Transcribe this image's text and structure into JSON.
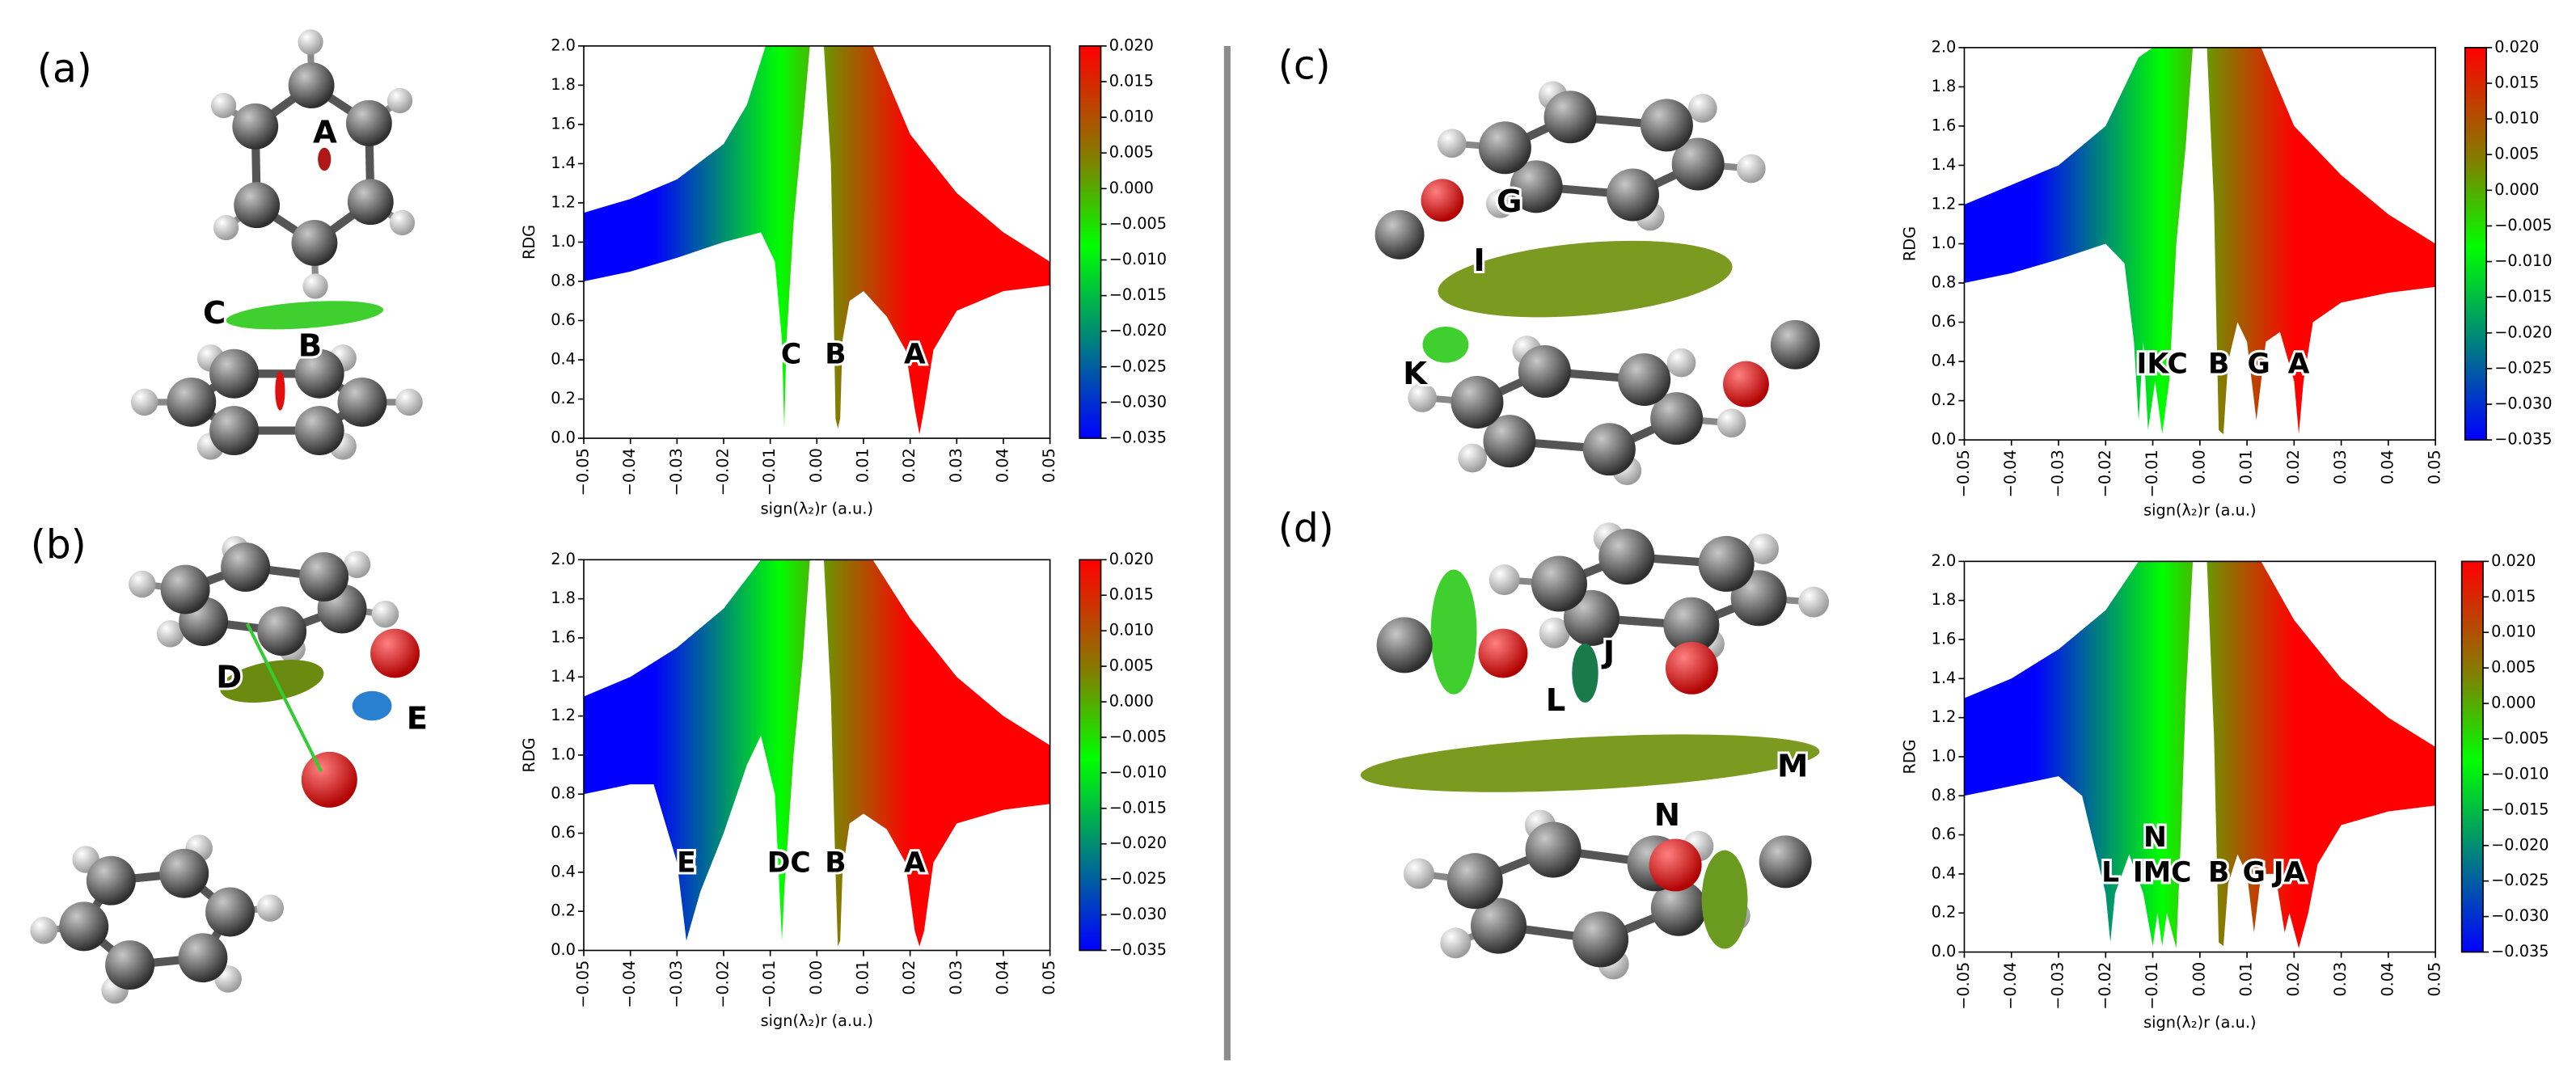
{
  "chart_data": [
    {
      "type": "scatter",
      "panel": "(a)",
      "structure_labels": [
        "A",
        "C",
        "B"
      ],
      "xlabel": "sign(λ₂)r (a.u.)",
      "ylabel": "RDG",
      "xlim": [
        -0.05,
        0.05
      ],
      "ylim": [
        0,
        2
      ],
      "clim": [
        -0.035,
        0.02
      ],
      "xticks": [
        {
          "value": -0.05,
          "label": "−0.05"
        },
        {
          "value": -0.04,
          "label": "−0.04"
        },
        {
          "value": -0.03,
          "label": "−0.03"
        },
        {
          "value": -0.02,
          "label": "−0.02"
        },
        {
          "value": -0.01,
          "label": "−0.01"
        },
        {
          "value": 0,
          "label": "0.00"
        },
        0.01,
        0.02,
        0.03,
        0.04,
        0.05
      ],
      "yticks": [
        {
          "value": 0,
          "label": "0.0"
        },
        0.2,
        0.4,
        0.6,
        0.8,
        {
          "value": 1,
          "label": "1.0"
        },
        1.2,
        1.4,
        1.6,
        1.8,
        {
          "value": 2,
          "label": "2.0"
        }
      ],
      "cticks": [
        {
          "value": 0.02,
          "label": "0.020"
        },
        {
          "value": 0.015,
          "label": "0.015"
        },
        {
          "value": 0.01,
          "label": "0.010"
        },
        {
          "value": 0.005,
          "label": "0.005"
        },
        {
          "value": 0,
          "label": "0.000"
        },
        {
          "value": -0.005,
          "label": "−0.005"
        },
        {
          "value": -0.01,
          "label": "−0.010"
        },
        {
          "value": -0.015,
          "label": "−0.015"
        },
        {
          "value": -0.02,
          "label": "−0.020"
        },
        {
          "value": -0.025,
          "label": "−0.025"
        },
        {
          "value": -0.03,
          "label": "−0.030"
        },
        {
          "value": -0.035,
          "label": "−0.035"
        }
      ],
      "colormap": [
        {
          "value": -0.035,
          "color": "#0000ff"
        },
        {
          "value": -0.008,
          "color": "#00ff00"
        },
        {
          "value": 0.004,
          "color": "#808000"
        },
        {
          "value": 0.02,
          "color": "#ff0000"
        }
      ],
      "envelope": {
        "upper_x": [
          -0.05,
          -0.04,
          -0.03,
          -0.02,
          -0.015,
          -0.011,
          -0.009,
          0.009,
          0.012,
          0.02,
          0.03,
          0.04,
          0.05
        ],
        "upper_y": [
          1.15,
          1.22,
          1.32,
          1.5,
          1.7,
          2.0,
          2.0,
          2.0,
          2.0,
          1.55,
          1.25,
          1.05,
          0.9
        ],
        "lower_x": [
          -0.05,
          -0.04,
          -0.03,
          -0.02,
          -0.012,
          -0.009,
          -0.0075,
          -0.007,
          -0.0065,
          -0.005,
          -0.003,
          -0.0015,
          0.0015,
          0.003,
          0.0035,
          0.004,
          0.0045,
          0.005,
          0.0055,
          0.007,
          0.01,
          0.015,
          0.019,
          0.021,
          0.022,
          0.023,
          0.025,
          0.03,
          0.04,
          0.05
        ],
        "lower_y": [
          0.8,
          0.85,
          0.92,
          1.0,
          1.05,
          0.9,
          0.5,
          0.05,
          0.5,
          1.1,
          1.6,
          2.0,
          2.0,
          1.4,
          0.8,
          0.1,
          0.05,
          0.1,
          0.5,
          0.7,
          0.75,
          0.62,
          0.45,
          0.15,
          0.02,
          0.15,
          0.45,
          0.65,
          0.75,
          0.78
        ]
      },
      "annotations": [
        {
          "text": "C",
          "x": -0.0055,
          "y": 0.42
        },
        {
          "text": "B",
          "x": 0.004,
          "y": 0.42
        },
        {
          "text": "A",
          "x": 0.021,
          "y": 0.42
        }
      ]
    },
    {
      "type": "scatter",
      "panel": "(b)",
      "structure_labels": [
        "D",
        "E"
      ],
      "xlabel": "sign(λ₂)r (a.u.)",
      "ylabel": "RDG",
      "xlim": [
        -0.05,
        0.05
      ],
      "ylim": [
        0,
        2
      ],
      "clim": [
        -0.035,
        0.02
      ],
      "xticks": [
        {
          "value": -0.05,
          "label": "−0.05"
        },
        {
          "value": -0.04,
          "label": "−0.04"
        },
        {
          "value": -0.03,
          "label": "−0.03"
        },
        {
          "value": -0.02,
          "label": "−0.02"
        },
        {
          "value": -0.01,
          "label": "−0.01"
        },
        {
          "value": 0,
          "label": "0.00"
        },
        0.01,
        0.02,
        0.03,
        0.04,
        0.05
      ],
      "yticks": [
        {
          "value": 0,
          "label": "0.0"
        },
        0.2,
        0.4,
        0.6,
        0.8,
        {
          "value": 1,
          "label": "1.0"
        },
        1.2,
        1.4,
        1.6,
        1.8,
        {
          "value": 2,
          "label": "2.0"
        }
      ],
      "cticks": [
        {
          "value": 0.02,
          "label": "0.020"
        },
        {
          "value": 0.015,
          "label": "0.015"
        },
        {
          "value": 0.01,
          "label": "0.010"
        },
        {
          "value": 0.005,
          "label": "0.005"
        },
        {
          "value": 0,
          "label": "0.000"
        },
        {
          "value": -0.005,
          "label": "−0.005"
        },
        {
          "value": -0.01,
          "label": "−0.010"
        },
        {
          "value": -0.015,
          "label": "−0.015"
        },
        {
          "value": -0.02,
          "label": "−0.020"
        },
        {
          "value": -0.025,
          "label": "−0.025"
        },
        {
          "value": -0.03,
          "label": "−0.030"
        },
        {
          "value": -0.035,
          "label": "−0.035"
        }
      ],
      "colormap": [
        {
          "value": -0.035,
          "color": "#0000ff"
        },
        {
          "value": -0.008,
          "color": "#00ff00"
        },
        {
          "value": 0.004,
          "color": "#808000"
        },
        {
          "value": 0.02,
          "color": "#ff0000"
        }
      ],
      "envelope": {
        "upper_x": [
          -0.05,
          -0.04,
          -0.03,
          -0.02,
          -0.012,
          -0.009,
          0.009,
          0.012,
          0.02,
          0.03,
          0.04,
          0.05
        ],
        "upper_y": [
          1.3,
          1.4,
          1.55,
          1.75,
          2.0,
          2.0,
          2.0,
          2.0,
          1.7,
          1.4,
          1.2,
          1.05
        ],
        "lower_x": [
          -0.05,
          -0.04,
          -0.035,
          -0.03,
          -0.028,
          -0.025,
          -0.02,
          -0.015,
          -0.012,
          -0.009,
          -0.008,
          -0.0075,
          -0.007,
          -0.005,
          -0.003,
          -0.0015,
          0.0015,
          0.003,
          0.004,
          0.0045,
          0.005,
          0.0055,
          0.007,
          0.01,
          0.015,
          0.019,
          0.021,
          0.022,
          0.023,
          0.025,
          0.03,
          0.04,
          0.05
        ],
        "lower_y": [
          0.8,
          0.85,
          0.85,
          0.45,
          0.05,
          0.3,
          0.6,
          0.95,
          1.1,
          0.8,
          0.3,
          0.05,
          0.3,
          1.0,
          1.5,
          2.0,
          2.0,
          1.3,
          0.4,
          0.02,
          0.05,
          0.4,
          0.65,
          0.7,
          0.62,
          0.45,
          0.1,
          0.02,
          0.1,
          0.45,
          0.65,
          0.72,
          0.75
        ]
      },
      "annotations": [
        {
          "text": "E",
          "x": -0.028,
          "y": 0.44
        },
        {
          "text": "DC",
          "x": -0.006,
          "y": 0.44
        },
        {
          "text": "B",
          "x": 0.004,
          "y": 0.44
        },
        {
          "text": "A",
          "x": 0.021,
          "y": 0.44
        }
      ]
    },
    {
      "type": "scatter",
      "panel": "(c)",
      "structure_labels": [
        "G",
        "I",
        "K"
      ],
      "xlabel": "sign(λ₂)r (a.u.)",
      "ylabel": "RDG",
      "xlim": [
        -0.05,
        0.05
      ],
      "ylim": [
        0,
        2
      ],
      "clim": [
        -0.035,
        0.02
      ],
      "xticks": [
        {
          "value": -0.05,
          "label": "−0.05"
        },
        {
          "value": -0.04,
          "label": "−0.04"
        },
        {
          "value": -0.03,
          "label": "−0.03"
        },
        {
          "value": -0.02,
          "label": "−0.02"
        },
        {
          "value": -0.01,
          "label": "−0.01"
        },
        {
          "value": 0,
          "label": "0.00"
        },
        0.01,
        0.02,
        0.03,
        0.04,
        0.05
      ],
      "yticks": [
        {
          "value": 0,
          "label": "0.0"
        },
        0.2,
        0.4,
        0.6,
        0.8,
        {
          "value": 1,
          "label": "1.0"
        },
        1.2,
        1.4,
        1.6,
        1.8,
        {
          "value": 2,
          "label": "2.0"
        }
      ],
      "cticks": [
        {
          "value": 0.02,
          "label": "0.020"
        },
        {
          "value": 0.015,
          "label": "0.015"
        },
        {
          "value": 0.01,
          "label": "0.010"
        },
        {
          "value": 0.005,
          "label": "0.005"
        },
        {
          "value": 0,
          "label": "0.000"
        },
        {
          "value": -0.005,
          "label": "−0.005"
        },
        {
          "value": -0.01,
          "label": "−0.010"
        },
        {
          "value": -0.015,
          "label": "−0.015"
        },
        {
          "value": -0.02,
          "label": "−0.020"
        },
        {
          "value": -0.025,
          "label": "−0.025"
        },
        {
          "value": -0.03,
          "label": "−0.030"
        },
        {
          "value": -0.035,
          "label": "−0.035"
        }
      ],
      "colormap": [
        {
          "value": -0.035,
          "color": "#0000ff"
        },
        {
          "value": -0.008,
          "color": "#00ff00"
        },
        {
          "value": 0.004,
          "color": "#808000"
        },
        {
          "value": 0.02,
          "color": "#ff0000"
        }
      ],
      "envelope": {
        "upper_x": [
          -0.05,
          -0.04,
          -0.03,
          -0.02,
          -0.013,
          -0.01,
          0.01,
          0.013,
          0.02,
          0.03,
          0.04,
          0.05
        ],
        "upper_y": [
          1.2,
          1.3,
          1.4,
          1.6,
          1.95,
          2.0,
          2.0,
          2.0,
          1.6,
          1.35,
          1.15,
          1.0
        ],
        "lower_x": [
          -0.05,
          -0.04,
          -0.03,
          -0.02,
          -0.016,
          -0.014,
          -0.013,
          -0.012,
          -0.011,
          -0.0095,
          -0.008,
          -0.0065,
          -0.005,
          -0.003,
          -0.0015,
          0.0015,
          0.003,
          0.0035,
          0.004,
          0.005,
          0.006,
          0.008,
          0.01,
          0.012,
          0.014,
          0.017,
          0.02,
          0.021,
          0.022,
          0.024,
          0.03,
          0.04,
          0.05
        ],
        "lower_y": [
          0.8,
          0.85,
          0.92,
          1.0,
          0.9,
          0.5,
          0.1,
          0.5,
          0.05,
          0.3,
          0.03,
          0.3,
          1.0,
          1.5,
          2.0,
          2.0,
          1.2,
          0.6,
          0.05,
          0.03,
          0.4,
          0.6,
          0.5,
          0.1,
          0.5,
          0.55,
          0.3,
          0.03,
          0.3,
          0.6,
          0.7,
          0.75,
          0.78
        ]
      },
      "annotations": [
        {
          "text": "IKC",
          "x": -0.008,
          "y": 0.38
        },
        {
          "text": "B",
          "x": 0.004,
          "y": 0.38
        },
        {
          "text": "G",
          "x": 0.0125,
          "y": 0.38
        },
        {
          "text": "A",
          "x": 0.021,
          "y": 0.38
        }
      ]
    },
    {
      "type": "scatter",
      "panel": "(d)",
      "structure_labels": [
        "J",
        "L",
        "M",
        "N"
      ],
      "xlabel": "sign(λ₂)r (a.u.)",
      "ylabel": "RDG",
      "xlim": [
        -0.05,
        0.05
      ],
      "ylim": [
        0,
        2
      ],
      "clim": [
        -0.035,
        0.02
      ],
      "xticks": [
        {
          "value": -0.05,
          "label": "−0.05"
        },
        {
          "value": -0.04,
          "label": "−0.04"
        },
        {
          "value": -0.03,
          "label": "−0.03"
        },
        {
          "value": -0.02,
          "label": "−0.02"
        },
        {
          "value": -0.01,
          "label": "−0.01"
        },
        {
          "value": 0,
          "label": "0.00"
        },
        0.01,
        0.02,
        0.03,
        0.04,
        0.05
      ],
      "yticks": [
        {
          "value": 0,
          "label": "0.0"
        },
        0.2,
        0.4,
        0.6,
        0.8,
        {
          "value": 1,
          "label": "1.0"
        },
        1.2,
        1.4,
        1.6,
        1.8,
        {
          "value": 2,
          "label": "2.0"
        }
      ],
      "cticks": [
        {
          "value": 0.02,
          "label": "0.020"
        },
        {
          "value": 0.015,
          "label": "0.015"
        },
        {
          "value": 0.01,
          "label": "0.010"
        },
        {
          "value": 0.005,
          "label": "0.005"
        },
        {
          "value": 0,
          "label": "0.000"
        },
        {
          "value": -0.005,
          "label": "−0.005"
        },
        {
          "value": -0.01,
          "label": "−0.010"
        },
        {
          "value": -0.015,
          "label": "−0.015"
        },
        {
          "value": -0.02,
          "label": "−0.020"
        },
        {
          "value": -0.025,
          "label": "−0.025"
        },
        {
          "value": -0.03,
          "label": "−0.030"
        },
        {
          "value": -0.035,
          "label": "−0.035"
        }
      ],
      "colormap": [
        {
          "value": -0.035,
          "color": "#0000ff"
        },
        {
          "value": -0.008,
          "color": "#00ff00"
        },
        {
          "value": 0.004,
          "color": "#808000"
        },
        {
          "value": 0.02,
          "color": "#ff0000"
        }
      ],
      "envelope": {
        "upper_x": [
          -0.05,
          -0.04,
          -0.03,
          -0.02,
          -0.013,
          -0.01,
          0.01,
          0.013,
          0.02,
          0.03,
          0.04,
          0.05
        ],
        "upper_y": [
          1.3,
          1.4,
          1.55,
          1.75,
          2.0,
          2.0,
          2.0,
          2.0,
          1.7,
          1.4,
          1.2,
          1.05
        ],
        "lower_x": [
          -0.05,
          -0.04,
          -0.03,
          -0.025,
          -0.02,
          -0.019,
          -0.018,
          -0.015,
          -0.012,
          -0.01,
          -0.009,
          -0.008,
          -0.007,
          -0.005,
          -0.004,
          -0.003,
          -0.0015,
          0.0015,
          0.003,
          0.004,
          0.005,
          0.006,
          0.008,
          0.01,
          0.0115,
          0.013,
          0.016,
          0.018,
          0.019,
          0.021,
          0.023,
          0.025,
          0.03,
          0.04,
          0.05
        ],
        "lower_y": [
          0.8,
          0.85,
          0.9,
          0.8,
          0.3,
          0.05,
          0.3,
          0.5,
          0.3,
          0.03,
          0.2,
          0.03,
          0.2,
          0.02,
          0.6,
          1.3,
          2.0,
          2.0,
          1.1,
          0.05,
          0.03,
          0.35,
          0.5,
          0.4,
          0.1,
          0.4,
          0.4,
          0.1,
          0.2,
          0.02,
          0.2,
          0.45,
          0.65,
          0.72,
          0.75
        ]
      },
      "annotations": [
        {
          "text": "L",
          "x": -0.019,
          "y": 0.4
        },
        {
          "text": "N",
          "x": -0.0095,
          "y": 0.58
        },
        {
          "text": "IMC",
          "x": -0.008,
          "y": 0.4
        },
        {
          "text": "B",
          "x": 0.004,
          "y": 0.4
        },
        {
          "text": "G",
          "x": 0.0115,
          "y": 0.4
        },
        {
          "text": "JA",
          "x": 0.019,
          "y": 0.4
        }
      ]
    }
  ]
}
